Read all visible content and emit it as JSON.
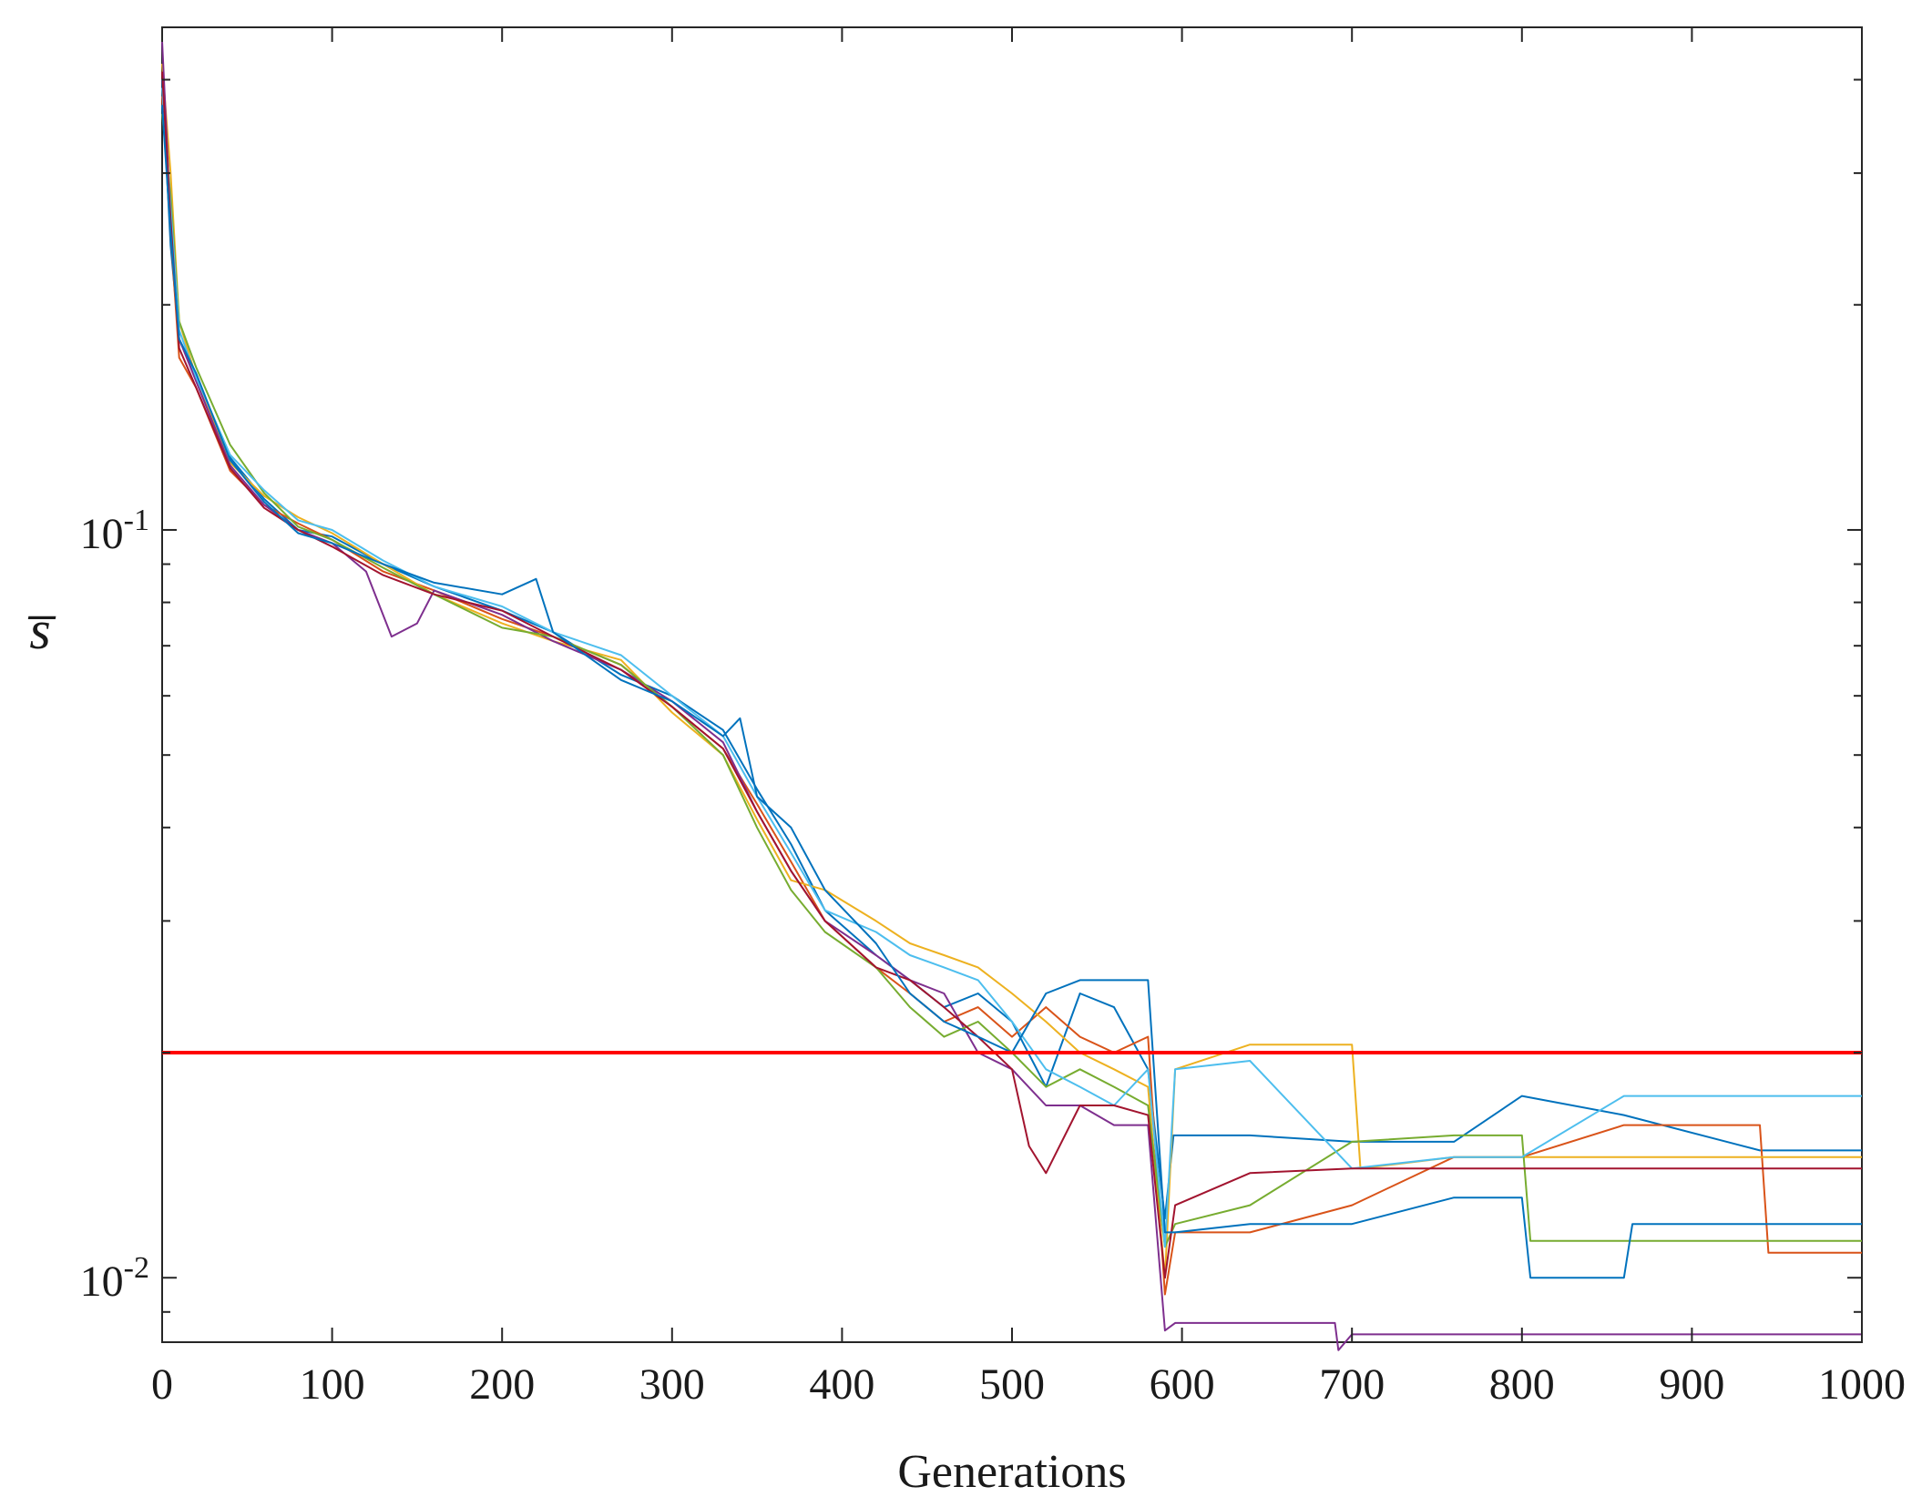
{
  "chart_data": {
    "type": "line",
    "title": "",
    "xlabel": "Generations",
    "ylabel": "s̅",
    "xlim": [
      0,
      1000
    ],
    "ylim": [
      0.0082,
      0.47
    ],
    "yscale": "log",
    "grid": false,
    "x_ticks": [
      0,
      100,
      200,
      300,
      400,
      500,
      600,
      700,
      800,
      900,
      1000
    ],
    "x_tick_labels": [
      "0",
      "100",
      "200",
      "300",
      "400",
      "500",
      "600",
      "700",
      "800",
      "900",
      "1000"
    ],
    "y_ticks": [
      0.1,
      0.01
    ],
    "y_tick_labels": [
      {
        "base": "10",
        "exp": "-1"
      },
      {
        "base": "10",
        "exp": "-2"
      }
    ],
    "threshold": {
      "value": 0.02,
      "color": "#ff0000"
    },
    "series": [
      {
        "color": "#0072bd",
        "points": [
          [
            0,
            0.4
          ],
          [
            5,
            0.24
          ],
          [
            10,
            0.18
          ],
          [
            20,
            0.16
          ],
          [
            40,
            0.125
          ],
          [
            60,
            0.11
          ],
          [
            80,
            0.1
          ],
          [
            100,
            0.098
          ],
          [
            130,
            0.09
          ],
          [
            160,
            0.084
          ],
          [
            200,
            0.078
          ],
          [
            230,
            0.073
          ],
          [
            270,
            0.064
          ],
          [
            300,
            0.06
          ],
          [
            330,
            0.054
          ],
          [
            350,
            0.045
          ],
          [
            370,
            0.038
          ],
          [
            390,
            0.031
          ],
          [
            420,
            0.027
          ],
          [
            440,
            0.025
          ],
          [
            460,
            0.023
          ],
          [
            480,
            0.024
          ],
          [
            500,
            0.022
          ],
          [
            520,
            0.018
          ],
          [
            540,
            0.024
          ],
          [
            560,
            0.023
          ],
          [
            580,
            0.019
          ],
          [
            590,
            0.012
          ],
          [
            595,
            0.0155
          ],
          [
            640,
            0.0155
          ],
          [
            700,
            0.0152
          ],
          [
            760,
            0.0152
          ],
          [
            800,
            0.0175
          ],
          [
            860,
            0.0165
          ],
          [
            940,
            0.0148
          ],
          [
            1000,
            0.0148
          ]
        ]
      },
      {
        "color": "#d95319",
        "points": [
          [
            0,
            0.38
          ],
          [
            5,
            0.25
          ],
          [
            10,
            0.17
          ],
          [
            20,
            0.155
          ],
          [
            40,
            0.12
          ],
          [
            60,
            0.108
          ],
          [
            80,
            0.102
          ],
          [
            100,
            0.097
          ],
          [
            130,
            0.088
          ],
          [
            160,
            0.083
          ],
          [
            200,
            0.076
          ],
          [
            230,
            0.072
          ],
          [
            270,
            0.066
          ],
          [
            300,
            0.058
          ],
          [
            330,
            0.051
          ],
          [
            350,
            0.043
          ],
          [
            370,
            0.036
          ],
          [
            390,
            0.03
          ],
          [
            420,
            0.026
          ],
          [
            440,
            0.024
          ],
          [
            460,
            0.022
          ],
          [
            480,
            0.023
          ],
          [
            500,
            0.021
          ],
          [
            520,
            0.023
          ],
          [
            540,
            0.021
          ],
          [
            560,
            0.02
          ],
          [
            580,
            0.021
          ],
          [
            590,
            0.0095
          ],
          [
            596,
            0.0115
          ],
          [
            640,
            0.0115
          ],
          [
            700,
            0.0125
          ],
          [
            760,
            0.0145
          ],
          [
            800,
            0.0145
          ],
          [
            860,
            0.016
          ],
          [
            940,
            0.016
          ],
          [
            945,
            0.0108
          ],
          [
            1000,
            0.0108
          ]
        ]
      },
      {
        "color": "#edb120",
        "points": [
          [
            0,
            0.42
          ],
          [
            5,
            0.3
          ],
          [
            10,
            0.19
          ],
          [
            20,
            0.16
          ],
          [
            40,
            0.123
          ],
          [
            60,
            0.111
          ],
          [
            80,
            0.104
          ],
          [
            100,
            0.099
          ],
          [
            130,
            0.09
          ],
          [
            160,
            0.082
          ],
          [
            200,
            0.075
          ],
          [
            230,
            0.071
          ],
          [
            270,
            0.067
          ],
          [
            300,
            0.057
          ],
          [
            330,
            0.05
          ],
          [
            350,
            0.041
          ],
          [
            370,
            0.034
          ],
          [
            390,
            0.033
          ],
          [
            420,
            0.03
          ],
          [
            440,
            0.028
          ],
          [
            460,
            0.027
          ],
          [
            480,
            0.026
          ],
          [
            500,
            0.024
          ],
          [
            520,
            0.022
          ],
          [
            540,
            0.02
          ],
          [
            560,
            0.019
          ],
          [
            580,
            0.018
          ],
          [
            590,
            0.01
          ],
          [
            596,
            0.019
          ],
          [
            640,
            0.0205
          ],
          [
            700,
            0.0205
          ],
          [
            705,
            0.014
          ],
          [
            760,
            0.0145
          ],
          [
            1000,
            0.0145
          ]
        ]
      },
      {
        "color": "#7e2f8e",
        "points": [
          [
            0,
            0.45
          ],
          [
            5,
            0.26
          ],
          [
            10,
            0.18
          ],
          [
            20,
            0.158
          ],
          [
            40,
            0.122
          ],
          [
            60,
            0.108
          ],
          [
            80,
            0.1
          ],
          [
            100,
            0.096
          ],
          [
            120,
            0.088
          ],
          [
            135,
            0.072
          ],
          [
            150,
            0.075
          ],
          [
            160,
            0.083
          ],
          [
            200,
            0.077
          ],
          [
            230,
            0.071
          ],
          [
            270,
            0.065
          ],
          [
            300,
            0.059
          ],
          [
            330,
            0.052
          ],
          [
            350,
            0.042
          ],
          [
            370,
            0.035
          ],
          [
            390,
            0.03
          ],
          [
            420,
            0.027
          ],
          [
            440,
            0.025
          ],
          [
            460,
            0.024
          ],
          [
            480,
            0.02
          ],
          [
            500,
            0.019
          ],
          [
            520,
            0.017
          ],
          [
            540,
            0.017
          ],
          [
            560,
            0.016
          ],
          [
            580,
            0.016
          ],
          [
            590,
            0.0085
          ],
          [
            596,
            0.0087
          ],
          [
            690,
            0.0087
          ],
          [
            692,
            0.008
          ],
          [
            700,
            0.0084
          ],
          [
            1000,
            0.0084
          ]
        ]
      },
      {
        "color": "#77ac30",
        "points": [
          [
            0,
            0.36
          ],
          [
            5,
            0.28
          ],
          [
            10,
            0.19
          ],
          [
            20,
            0.165
          ],
          [
            40,
            0.13
          ],
          [
            60,
            0.112
          ],
          [
            80,
            0.101
          ],
          [
            100,
            0.097
          ],
          [
            130,
            0.089
          ],
          [
            160,
            0.082
          ],
          [
            200,
            0.074
          ],
          [
            230,
            0.072
          ],
          [
            270,
            0.066
          ],
          [
            300,
            0.058
          ],
          [
            330,
            0.05
          ],
          [
            350,
            0.04
          ],
          [
            370,
            0.033
          ],
          [
            390,
            0.029
          ],
          [
            420,
            0.026
          ],
          [
            440,
            0.023
          ],
          [
            460,
            0.021
          ],
          [
            480,
            0.022
          ],
          [
            500,
            0.02
          ],
          [
            520,
            0.018
          ],
          [
            540,
            0.019
          ],
          [
            560,
            0.018
          ],
          [
            580,
            0.017
          ],
          [
            590,
            0.011
          ],
          [
            596,
            0.0118
          ],
          [
            640,
            0.0125
          ],
          [
            700,
            0.0152
          ],
          [
            760,
            0.0155
          ],
          [
            800,
            0.0155
          ],
          [
            805,
            0.0112
          ],
          [
            860,
            0.0112
          ],
          [
            1000,
            0.0112
          ]
        ]
      },
      {
        "color": "#4dbeee",
        "points": [
          [
            0,
            0.39
          ],
          [
            5,
            0.27
          ],
          [
            10,
            0.185
          ],
          [
            20,
            0.16
          ],
          [
            40,
            0.126
          ],
          [
            60,
            0.113
          ],
          [
            80,
            0.103
          ],
          [
            100,
            0.1
          ],
          [
            130,
            0.091
          ],
          [
            160,
            0.084
          ],
          [
            200,
            0.079
          ],
          [
            230,
            0.073
          ],
          [
            270,
            0.068
          ],
          [
            300,
            0.06
          ],
          [
            330,
            0.053
          ],
          [
            350,
            0.044
          ],
          [
            370,
            0.037
          ],
          [
            390,
            0.031
          ],
          [
            420,
            0.029
          ],
          [
            440,
            0.027
          ],
          [
            460,
            0.026
          ],
          [
            480,
            0.025
          ],
          [
            500,
            0.022
          ],
          [
            520,
            0.019
          ],
          [
            540,
            0.018
          ],
          [
            560,
            0.017
          ],
          [
            580,
            0.019
          ],
          [
            590,
            0.011
          ],
          [
            596,
            0.019
          ],
          [
            640,
            0.0195
          ],
          [
            700,
            0.014
          ],
          [
            760,
            0.0145
          ],
          [
            800,
            0.0145
          ],
          [
            860,
            0.0175
          ],
          [
            940,
            0.0175
          ],
          [
            1000,
            0.0175
          ]
        ]
      },
      {
        "color": "#a2142f",
        "points": [
          [
            0,
            0.41
          ],
          [
            5,
            0.26
          ],
          [
            10,
            0.175
          ],
          [
            20,
            0.155
          ],
          [
            40,
            0.121
          ],
          [
            60,
            0.107
          ],
          [
            80,
            0.1
          ],
          [
            100,
            0.095
          ],
          [
            130,
            0.087
          ],
          [
            160,
            0.082
          ],
          [
            200,
            0.078
          ],
          [
            230,
            0.072
          ],
          [
            270,
            0.065
          ],
          [
            300,
            0.058
          ],
          [
            330,
            0.051
          ],
          [
            350,
            0.042
          ],
          [
            370,
            0.035
          ],
          [
            390,
            0.03
          ],
          [
            420,
            0.026
          ],
          [
            440,
            0.025
          ],
          [
            460,
            0.023
          ],
          [
            480,
            0.021
          ],
          [
            500,
            0.019
          ],
          [
            510,
            0.015
          ],
          [
            520,
            0.0138
          ],
          [
            540,
            0.017
          ],
          [
            560,
            0.017
          ],
          [
            580,
            0.0165
          ],
          [
            590,
            0.01
          ],
          [
            596,
            0.0125
          ],
          [
            640,
            0.0138
          ],
          [
            700,
            0.014
          ],
          [
            760,
            0.014
          ],
          [
            1000,
            0.014
          ]
        ]
      },
      {
        "color": "#0072bd",
        "points": [
          [
            0,
            0.37
          ],
          [
            5,
            0.25
          ],
          [
            10,
            0.18
          ],
          [
            20,
            0.162
          ],
          [
            40,
            0.124
          ],
          [
            60,
            0.109
          ],
          [
            80,
            0.099
          ],
          [
            100,
            0.096
          ],
          [
            130,
            0.09
          ],
          [
            160,
            0.085
          ],
          [
            200,
            0.082
          ],
          [
            220,
            0.086
          ],
          [
            230,
            0.073
          ],
          [
            270,
            0.063
          ],
          [
            300,
            0.059
          ],
          [
            330,
            0.053
          ],
          [
            340,
            0.056
          ],
          [
            350,
            0.044
          ],
          [
            370,
            0.04
          ],
          [
            390,
            0.033
          ],
          [
            420,
            0.028
          ],
          [
            440,
            0.024
          ],
          [
            460,
            0.022
          ],
          [
            480,
            0.021
          ],
          [
            500,
            0.02
          ],
          [
            520,
            0.024
          ],
          [
            540,
            0.025
          ],
          [
            560,
            0.025
          ],
          [
            580,
            0.025
          ],
          [
            590,
            0.0115
          ],
          [
            596,
            0.0115
          ],
          [
            640,
            0.0118
          ],
          [
            700,
            0.0118
          ],
          [
            760,
            0.0128
          ],
          [
            800,
            0.0128
          ],
          [
            805,
            0.01
          ],
          [
            860,
            0.01
          ],
          [
            865,
            0.0118
          ],
          [
            1000,
            0.0118
          ]
        ]
      }
    ]
  }
}
